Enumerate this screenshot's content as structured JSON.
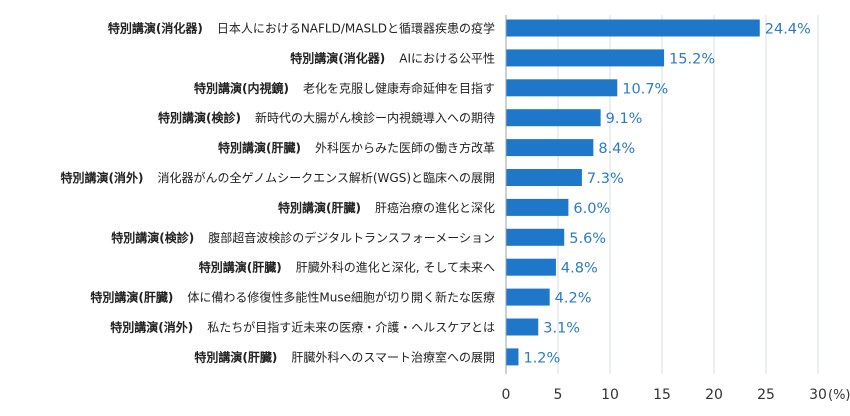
{
  "chart_data": {
    "type": "bar",
    "orientation": "horizontal",
    "bar_color": "#1f77c9",
    "value_label_color": "#2a7cc7",
    "grid": true,
    "xlim": [
      0,
      30
    ],
    "xticks": [
      0,
      5,
      10,
      15,
      20,
      25,
      30
    ],
    "x_unit": "(%)",
    "categories": [
      {
        "category": "特別講演(消化器)",
        "topic": "日本人におけるNAFLD/MASLDと循環器疾患の疫学"
      },
      {
        "category": "特別講演(消化器)",
        "topic": "AIにおける公平性"
      },
      {
        "category": "特別講演(内視鏡)",
        "topic": "老化を克服し健康寿命延伸を目指す"
      },
      {
        "category": "特別講演(検診)",
        "topic": "新時代の大腸がん検診ー内視鏡導入への期待"
      },
      {
        "category": "特別講演(肝臓)",
        "topic": "外科医からみた医師の働き方改革"
      },
      {
        "category": "特別講演(消外)",
        "topic": "消化器がんの全ゲノムシークエンス解析(WGS)と臨床への展開"
      },
      {
        "category": "特別講演(肝臓)",
        "topic": "肝癌治療の進化と深化"
      },
      {
        "category": "特別講演(検診)",
        "topic": "腹部超音波検診のデジタルトランスフォーメーション"
      },
      {
        "category": "特別講演(肝臓)",
        "topic": "肝臓外科の進化と深化, そして未来へ"
      },
      {
        "category": "特別講演(肝臓)",
        "topic": "体に備わる修復性多能性Muse細胞が切り開く新たな医療"
      },
      {
        "category": "特別講演(消外)",
        "topic": "私たちが目指す近未来の医療・介護・ヘルスケアとは"
      },
      {
        "category": "特別講演(肝臓)",
        "topic": "肝臓外科へのスマート治療室への展開"
      }
    ],
    "values": [
      24.4,
      15.2,
      10.7,
      9.1,
      8.4,
      7.3,
      6.0,
      5.6,
      4.8,
      4.2,
      3.1,
      1.2
    ],
    "value_labels": [
      "24.4%",
      "15.2%",
      "10.7%",
      "9.1%",
      "8.4%",
      "7.3%",
      "6.0%",
      "5.6%",
      "4.8%",
      "4.2%",
      "3.1%",
      "1.2%"
    ]
  }
}
